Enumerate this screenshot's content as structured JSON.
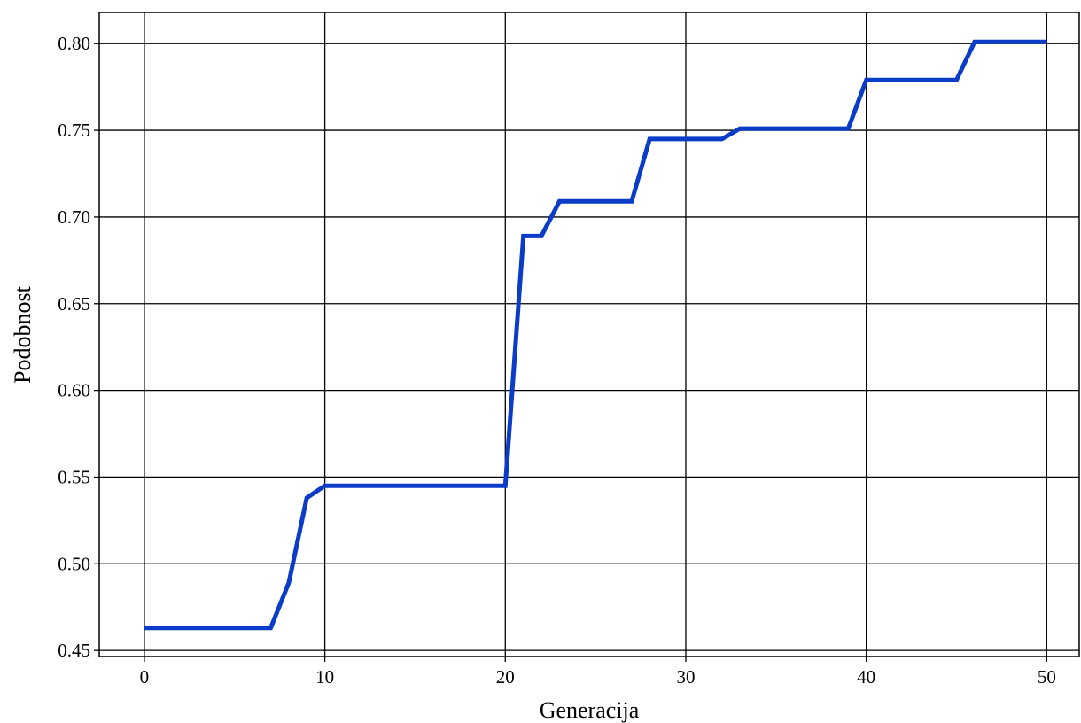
{
  "chart_data": {
    "type": "line",
    "title": "",
    "xlabel": "Generacija",
    "ylabel": "Podobnost",
    "xlim": [
      -2.5,
      51.8
    ],
    "ylim": [
      0.4465,
      0.818
    ],
    "xticks": [
      0,
      10,
      20,
      30,
      40,
      50
    ],
    "xtick_labels": [
      "0",
      "10",
      "20",
      "30",
      "40",
      "50"
    ],
    "yticks": [
      0.45,
      0.5,
      0.55,
      0.6,
      0.65,
      0.7,
      0.75,
      0.8
    ],
    "ytick_labels": [
      "0.45",
      "0.50",
      "0.55",
      "0.60",
      "0.65",
      "0.70",
      "0.75",
      "0.80"
    ],
    "grid": true,
    "series": [
      {
        "color": "#0a3cc8",
        "x": [
          0,
          1,
          2,
          3,
          4,
          5,
          6,
          7,
          8,
          9,
          10,
          11,
          12,
          13,
          14,
          15,
          16,
          17,
          18,
          19,
          20,
          21,
          22,
          23,
          24,
          25,
          26,
          27,
          28,
          29,
          30,
          31,
          32,
          33,
          34,
          35,
          36,
          37,
          38,
          39,
          40,
          41,
          42,
          43,
          44,
          45,
          46,
          47,
          48,
          49,
          50
        ],
        "y": [
          0.463,
          0.463,
          0.463,
          0.463,
          0.463,
          0.463,
          0.463,
          0.463,
          0.489,
          0.538,
          0.545,
          0.545,
          0.545,
          0.545,
          0.545,
          0.545,
          0.545,
          0.545,
          0.545,
          0.545,
          0.545,
          0.689,
          0.689,
          0.709,
          0.709,
          0.709,
          0.709,
          0.709,
          0.745,
          0.745,
          0.745,
          0.745,
          0.745,
          0.751,
          0.751,
          0.751,
          0.751,
          0.751,
          0.751,
          0.751,
          0.779,
          0.779,
          0.779,
          0.779,
          0.779,
          0.779,
          0.801,
          0.801,
          0.801,
          0.801,
          0.801
        ]
      }
    ]
  }
}
